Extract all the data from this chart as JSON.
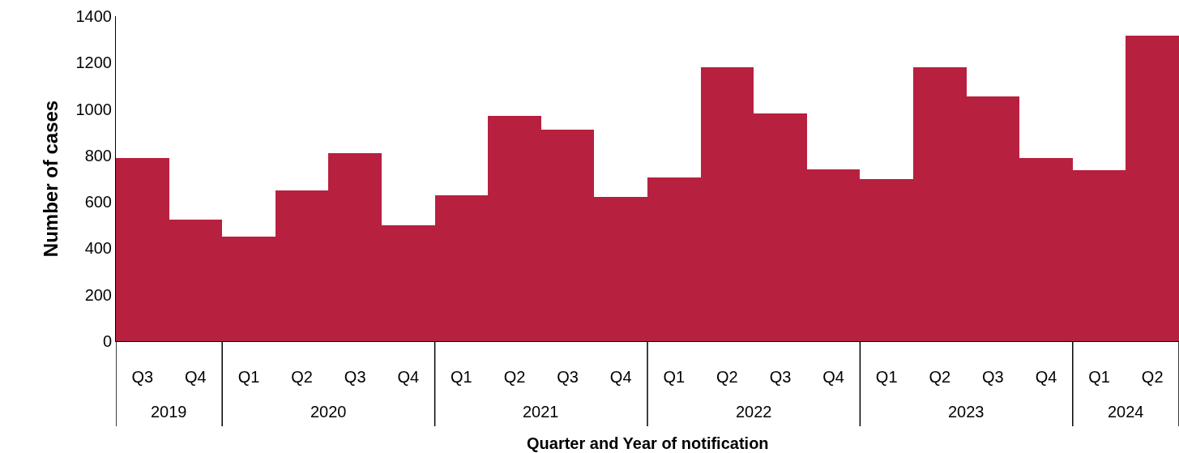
{
  "chart_data": {
    "type": "bar",
    "xlabel": "Quarter and Year of notification",
    "ylabel": "Number of cases",
    "categories": [
      "Q3",
      "Q4",
      "Q1",
      "Q2",
      "Q3",
      "Q4",
      "Q1",
      "Q2",
      "Q3",
      "Q4",
      "Q1",
      "Q2",
      "Q3",
      "Q4",
      "Q1",
      "Q2",
      "Q3",
      "Q4",
      "Q1",
      "Q2"
    ],
    "values": [
      790,
      525,
      450,
      650,
      810,
      500,
      630,
      970,
      910,
      620,
      705,
      1180,
      980,
      740,
      700,
      1180,
      1055,
      790,
      735,
      1315
    ],
    "annotations": [
      "2019",
      "2020",
      "2021",
      "2022",
      "2023",
      "2024"
    ],
    "color": "#b8203f",
    "ylim": [
      0,
      1400
    ],
    "yticks": [
      0,
      200,
      400,
      600,
      800,
      1000,
      1200,
      1400
    ],
    "grid": false,
    "legend": false
  }
}
